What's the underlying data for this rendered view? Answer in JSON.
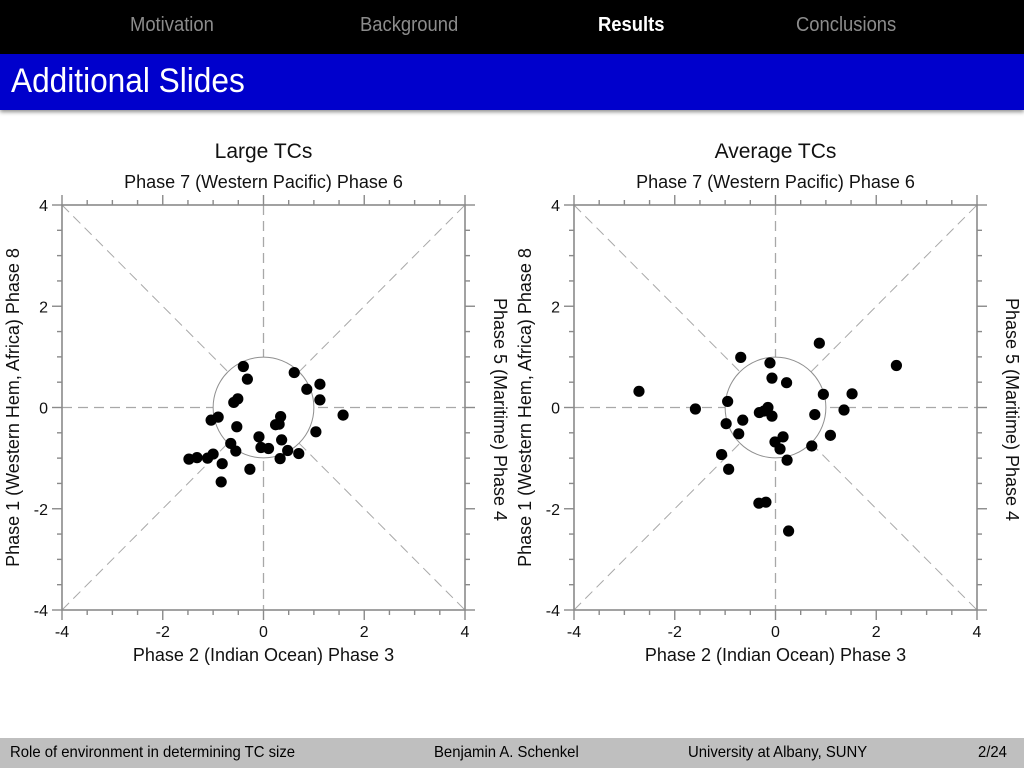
{
  "nav": {
    "items": [
      {
        "label": "Motivation",
        "active": false
      },
      {
        "label": "Background",
        "active": false
      },
      {
        "label": "Results",
        "active": true
      },
      {
        "label": "Conclusions",
        "active": false
      }
    ]
  },
  "frame": {
    "title": "Additional Slides"
  },
  "footer": {
    "talk_title": "Role of environment in determining TC size",
    "author": "Benjamin A. Schenkel",
    "institution": "University at Albany, SUNY",
    "page": "2/24"
  },
  "colors": {
    "navbar": "#000000",
    "titlebar": "#0000cc",
    "footer": "#bfbfbf",
    "nav_inactive": "#8c8c8c",
    "nav_active": "#ffffff"
  },
  "chart_data": [
    {
      "type": "scatter",
      "title": "Large TCs",
      "top_label": "Phase 7 (Western Pacific) Phase 6",
      "xlabel": "Phase 2 (Indian Ocean) Phase 3",
      "ylabel": "Phase 1 (Western Hem, Africa) Phase 8",
      "right_label": "Phase 5 (Maritime) Phase 4",
      "xlim": [
        -4,
        4
      ],
      "ylim": [
        -4,
        4
      ],
      "xticks": [
        -4,
        -2,
        0,
        2,
        4
      ],
      "yticks": [
        -4,
        -2,
        0,
        2,
        4
      ],
      "unit_circle_radius": 1,
      "points": [
        [
          -0.4,
          0.81
        ],
        [
          -0.32,
          0.56
        ],
        [
          -0.51,
          0.17
        ],
        [
          -0.59,
          0.1
        ],
        [
          -0.9,
          -0.19
        ],
        [
          -1.04,
          -0.25
        ],
        [
          -0.53,
          -0.38
        ],
        [
          -0.09,
          -0.58
        ],
        [
          -0.05,
          -0.79
        ],
        [
          0.1,
          -0.81
        ],
        [
          -0.65,
          -0.71
        ],
        [
          -0.55,
          -0.86
        ],
        [
          -1.0,
          -0.92
        ],
        [
          -1.11,
          -1.0
        ],
        [
          -1.32,
          -0.99
        ],
        [
          -1.48,
          -1.02
        ],
        [
          -0.82,
          -1.11
        ],
        [
          -0.27,
          -1.22
        ],
        [
          -0.84,
          -1.47
        ],
        [
          0.61,
          0.69
        ],
        [
          0.86,
          0.36
        ],
        [
          1.12,
          0.46
        ],
        [
          1.12,
          0.15
        ],
        [
          1.58,
          -0.15
        ],
        [
          0.34,
          -0.18
        ],
        [
          0.31,
          -0.33
        ],
        [
          0.24,
          -0.34
        ],
        [
          1.04,
          -0.48
        ],
        [
          0.36,
          -0.64
        ],
        [
          0.48,
          -0.85
        ],
        [
          0.7,
          -0.91
        ],
        [
          0.33,
          -1.01
        ]
      ]
    },
    {
      "type": "scatter",
      "title": "Average TCs",
      "top_label": "Phase 7 (Western Pacific) Phase 6",
      "xlabel": "Phase 2 (Indian Ocean) Phase 3",
      "ylabel": "Phase 1 (Western Hem, Africa) Phase 8",
      "right_label": "Phase 5 (Maritime) Phase 4",
      "xlim": [
        -4,
        4
      ],
      "ylim": [
        -4,
        4
      ],
      "xticks": [
        -4,
        -2,
        0,
        2,
        4
      ],
      "yticks": [
        -4,
        -2,
        0,
        2,
        4
      ],
      "unit_circle_radius": 1,
      "points": [
        [
          -2.71,
          0.32
        ],
        [
          -1.59,
          -0.03
        ],
        [
          -0.69,
          0.99
        ],
        [
          -0.95,
          0.12
        ],
        [
          -0.98,
          -0.32
        ],
        [
          -0.65,
          -0.25
        ],
        [
          -0.73,
          -0.52
        ],
        [
          -1.07,
          -0.93
        ],
        [
          -0.93,
          -1.22
        ],
        [
          -0.11,
          0.88
        ],
        [
          -0.07,
          0.58
        ],
        [
          0.22,
          0.49
        ],
        [
          -0.32,
          -0.1
        ],
        [
          -0.15,
          0.0
        ],
        [
          -0.23,
          -0.07
        ],
        [
          -0.07,
          -0.17
        ],
        [
          0.15,
          -0.58
        ],
        [
          -0.01,
          -0.68
        ],
        [
          0.09,
          -0.82
        ],
        [
          0.23,
          -1.04
        ],
        [
          0.87,
          1.27
        ],
        [
          0.95,
          0.26
        ],
        [
          0.78,
          -0.14
        ],
        [
          0.72,
          -0.76
        ],
        [
          1.09,
          -0.55
        ],
        [
          1.36,
          -0.05
        ],
        [
          1.52,
          0.27
        ],
        [
          2.4,
          0.83
        ],
        [
          -0.33,
          -1.89
        ],
        [
          -0.19,
          -1.87
        ],
        [
          0.26,
          -2.44
        ]
      ]
    }
  ]
}
